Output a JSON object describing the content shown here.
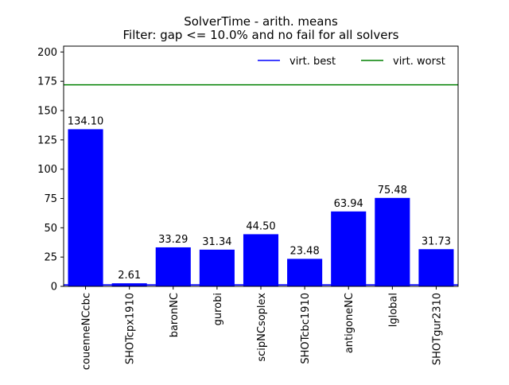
{
  "chart_data": {
    "type": "bar",
    "title": "SolverTime - arith. means",
    "subtitle": "Filter: gap <= 10.0% and no fail for all solvers",
    "xlabel": "",
    "ylabel": "",
    "ylim": [
      0,
      205
    ],
    "yticks": [
      0,
      25,
      50,
      75,
      100,
      125,
      150,
      175,
      200
    ],
    "grid": false,
    "legend_position": "top-right",
    "categories": [
      "couenneNCcbc",
      "SHOTcpx1910",
      "baronNC",
      "gurobi",
      "scipNCsoplex",
      "SHOTcbc1910",
      "antigoneNC",
      "lglobal",
      "SHOTgur2310"
    ],
    "values": [
      134.1,
      2.61,
      33.29,
      31.34,
      44.5,
      23.48,
      63.94,
      75.48,
      31.73
    ],
    "data_labels": [
      "134.10",
      "2.61",
      "33.29",
      "31.34",
      "44.50",
      "23.48",
      "63.94",
      "75.48",
      "31.73"
    ],
    "bar_color": "#0000ff",
    "reference_lines": [
      {
        "name": "virt. best",
        "value": 1.2,
        "color": "#0000ff"
      },
      {
        "name": "virt. worst",
        "value": 172.0,
        "color": "#008000"
      }
    ]
  }
}
